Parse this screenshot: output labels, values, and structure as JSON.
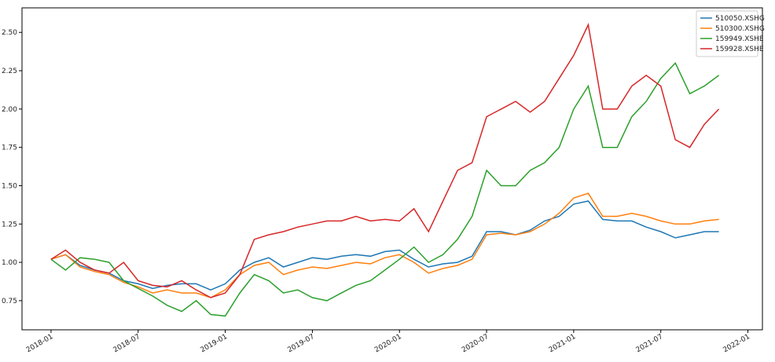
{
  "chart_data": {
    "type": "line",
    "x": [
      "2018-01",
      "2018-02",
      "2018-03",
      "2018-04",
      "2018-05",
      "2018-06",
      "2018-07",
      "2018-08",
      "2018-09",
      "2018-10",
      "2018-11",
      "2018-12",
      "2019-01",
      "2019-02",
      "2019-03",
      "2019-04",
      "2019-05",
      "2019-06",
      "2019-07",
      "2019-08",
      "2019-09",
      "2019-10",
      "2019-11",
      "2019-12",
      "2020-01",
      "2020-02",
      "2020-03",
      "2020-04",
      "2020-05",
      "2020-06",
      "2020-07",
      "2020-08",
      "2020-09",
      "2020-10",
      "2020-11",
      "2020-12",
      "2021-01",
      "2021-02",
      "2021-03",
      "2021-04",
      "2021-05",
      "2021-06",
      "2021-07",
      "2021-08",
      "2021-09",
      "2021-10",
      "2021-11"
    ],
    "series": [
      {
        "name": "510050.XSHG",
        "color": "#1f77b4",
        "values": [
          1.02,
          1.05,
          0.98,
          0.95,
          0.93,
          0.88,
          0.86,
          0.83,
          0.85,
          0.86,
          0.86,
          0.82,
          0.86,
          0.95,
          1.0,
          1.03,
          0.97,
          1.0,
          1.03,
          1.02,
          1.04,
          1.05,
          1.04,
          1.07,
          1.08,
          1.02,
          0.97,
          0.99,
          1.0,
          1.04,
          1.2,
          1.2,
          1.18,
          1.21,
          1.27,
          1.3,
          1.38,
          1.4,
          1.28,
          1.27,
          1.27,
          1.23,
          1.2,
          1.16,
          1.18,
          1.2,
          1.2
        ]
      },
      {
        "name": "510300.XSHG",
        "color": "#ff7f0e",
        "values": [
          1.02,
          1.05,
          0.97,
          0.94,
          0.92,
          0.87,
          0.84,
          0.8,
          0.82,
          0.8,
          0.8,
          0.77,
          0.82,
          0.92,
          0.98,
          1.0,
          0.92,
          0.95,
          0.97,
          0.96,
          0.98,
          1.0,
          0.99,
          1.03,
          1.05,
          1.0,
          0.93,
          0.96,
          0.98,
          1.02,
          1.18,
          1.19,
          1.18,
          1.2,
          1.25,
          1.32,
          1.42,
          1.45,
          1.3,
          1.3,
          1.32,
          1.3,
          1.27,
          1.25,
          1.25,
          1.27,
          1.28
        ]
      },
      {
        "name": "159949.XSHE",
        "color": "#2ca02c",
        "values": [
          1.02,
          0.95,
          1.03,
          1.02,
          1.0,
          0.88,
          0.83,
          0.78,
          0.72,
          0.68,
          0.75,
          0.66,
          0.65,
          0.8,
          0.92,
          0.88,
          0.8,
          0.82,
          0.77,
          0.75,
          0.8,
          0.85,
          0.88,
          0.95,
          1.02,
          1.1,
          1.0,
          1.05,
          1.15,
          1.3,
          1.6,
          1.5,
          1.5,
          1.6,
          1.65,
          1.75,
          2.0,
          2.15,
          1.75,
          1.75,
          1.95,
          2.05,
          2.2,
          2.3,
          2.1,
          2.15,
          2.22
        ]
      },
      {
        "name": "159928.XSHE",
        "color": "#d62728",
        "values": [
          1.02,
          1.08,
          1.0,
          0.95,
          0.93,
          1.0,
          0.88,
          0.85,
          0.84,
          0.88,
          0.82,
          0.77,
          0.8,
          0.92,
          1.15,
          1.18,
          1.2,
          1.23,
          1.25,
          1.27,
          1.27,
          1.3,
          1.27,
          1.28,
          1.27,
          1.35,
          1.2,
          1.4,
          1.6,
          1.65,
          1.95,
          2.0,
          2.05,
          1.98,
          2.05,
          2.2,
          2.35,
          2.55,
          2.0,
          2.0,
          2.15,
          2.22,
          2.15,
          1.8,
          1.75,
          1.9,
          2.0
        ]
      }
    ],
    "xlim": [
      "2017-11",
      "2022-02"
    ],
    "xticks": [
      "2018-01",
      "2018-07",
      "2019-01",
      "2019-07",
      "2020-01",
      "2020-07",
      "2021-01",
      "2021-07",
      "2022-01"
    ],
    "ylim": [
      0.56,
      2.66
    ],
    "yticks": [
      {
        "value": 0.75,
        "label": "0.75"
      },
      {
        "value": 1,
        "label": "1.00"
      },
      {
        "value": 1.25,
        "label": "1.25"
      },
      {
        "value": 1.5,
        "label": "1.50"
      },
      {
        "value": 1.75,
        "label": "1.75"
      },
      {
        "value": 2,
        "label": "2.00"
      },
      {
        "value": 2.25,
        "label": "2.25"
      },
      {
        "value": 2.5,
        "label": "2.50"
      }
    ],
    "legend": "upper right"
  }
}
